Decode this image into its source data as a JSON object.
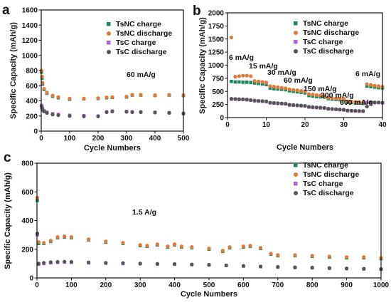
{
  "chart_data": [
    {
      "panel": "a",
      "type": "scatter",
      "xlabel": "Cycle Numbers",
      "ylabel": "Specific Capacity (mAh/g)",
      "xlim": [
        0,
        500
      ],
      "ylim": [
        0,
        1600
      ],
      "xticks": [
        0,
        100,
        200,
        300,
        400,
        500
      ],
      "yticks": [
        0,
        200,
        400,
        600,
        800,
        1000,
        1200,
        1400,
        1600
      ],
      "legend_position": "top-right",
      "annotations": [
        {
          "text": "60 mA/g"
        }
      ],
      "series": [
        {
          "name": "TsNC charge",
          "color": "#1a8a5a",
          "marker": "square",
          "x": [
            1,
            3,
            5,
            10,
            20,
            40,
            60,
            100,
            150,
            200,
            230,
            250,
            300,
            320,
            350,
            400,
            450,
            500
          ],
          "y": [
            780,
            700,
            620,
            550,
            500,
            460,
            440,
            420,
            425,
            430,
            440,
            445,
            450,
            475,
            475,
            470,
            475,
            470
          ]
        },
        {
          "name": "TsNC discharge",
          "color": "#e07a3c",
          "marker": "circle",
          "x": [
            1,
            3,
            5,
            10,
            20,
            40,
            60,
            100,
            150,
            200,
            230,
            250,
            300,
            320,
            350,
            400,
            450,
            500
          ],
          "y": [
            800,
            720,
            640,
            560,
            510,
            470,
            450,
            430,
            430,
            435,
            445,
            450,
            455,
            480,
            480,
            475,
            480,
            475
          ]
        },
        {
          "name": "TsC charge",
          "color": "#b060e0",
          "marker": "square",
          "x": [
            1,
            3,
            5,
            10,
            20,
            40,
            60,
            100,
            150,
            200,
            230,
            250,
            300,
            320,
            350,
            400,
            450,
            500
          ],
          "y": [
            340,
            310,
            290,
            270,
            250,
            230,
            220,
            210,
            205,
            200,
            255,
            265,
            260,
            255,
            255,
            250,
            245,
            235
          ]
        },
        {
          "name": "TsC discharge",
          "color": "#555555",
          "marker": "circle",
          "x": [
            1,
            3,
            5,
            10,
            20,
            40,
            60,
            100,
            150,
            200,
            230,
            250,
            300,
            320,
            350,
            400,
            450,
            500
          ],
          "y": [
            330,
            300,
            280,
            260,
            240,
            220,
            210,
            200,
            195,
            195,
            250,
            260,
            255,
            250,
            250,
            245,
            240,
            230
          ]
        }
      ]
    },
    {
      "panel": "b",
      "type": "scatter",
      "xlabel": "Cycle Numbers",
      "ylabel": "Specific Capacity (mAh/g)",
      "xlim": [
        0,
        40
      ],
      "ylim": [
        0,
        2000
      ],
      "xticks": [
        0,
        10,
        20,
        30,
        40
      ],
      "yticks": [
        0,
        250,
        500,
        750,
        1000,
        1250,
        1500,
        1750,
        2000
      ],
      "legend_position": "top-right",
      "annotations": [
        {
          "text": "6 mA/g"
        },
        {
          "text": "15 mA/g"
        },
        {
          "text": "30 mA/g"
        },
        {
          "text": "60 mA/g"
        },
        {
          "text": "150 mA/g"
        },
        {
          "text": "300 mA/g"
        },
        {
          "text": "600 mA/g"
        },
        {
          "text": "6 mA/g"
        }
      ],
      "series": [
        {
          "name": "TsNC charge",
          "color": "#1a8a5a",
          "marker": "square",
          "x": [
            1,
            2,
            3,
            4,
            5,
            6,
            7,
            8,
            9,
            10,
            11,
            12,
            13,
            14,
            15,
            16,
            17,
            18,
            19,
            20,
            21,
            22,
            23,
            24,
            25,
            26,
            27,
            28,
            29,
            30,
            31,
            32,
            33,
            34,
            35,
            36,
            37,
            38,
            39,
            40
          ],
          "y": [
            690,
            680,
            680,
            675,
            675,
            670,
            660,
            650,
            640,
            630,
            560,
            550,
            545,
            540,
            530,
            510,
            500,
            490,
            480,
            470,
            420,
            410,
            400,
            395,
            390,
            360,
            350,
            345,
            340,
            335,
            290,
            285,
            280,
            275,
            270,
            600,
            590,
            580,
            570,
            565
          ]
        },
        {
          "name": "TsNC discharge",
          "color": "#e07a3c",
          "marker": "circle",
          "x": [
            1,
            2,
            3,
            4,
            5,
            6,
            7,
            8,
            9,
            10,
            11,
            12,
            13,
            14,
            15,
            16,
            17,
            18,
            19,
            20,
            21,
            22,
            23,
            24,
            25,
            26,
            27,
            28,
            29,
            30,
            31,
            32,
            33,
            34,
            35,
            36,
            37,
            38,
            39,
            40
          ],
          "y": [
            1530,
            780,
            790,
            800,
            800,
            790,
            700,
            690,
            680,
            670,
            600,
            590,
            580,
            570,
            560,
            540,
            530,
            520,
            510,
            500,
            450,
            440,
            430,
            420,
            410,
            380,
            370,
            365,
            360,
            355,
            310,
            305,
            300,
            295,
            290,
            640,
            625,
            610,
            600,
            590
          ]
        },
        {
          "name": "TsC charge",
          "color": "#b060e0",
          "marker": "square",
          "x": [
            1,
            2,
            3,
            4,
            5,
            6,
            7,
            8,
            9,
            10,
            11,
            12,
            13,
            14,
            15,
            16,
            17,
            18,
            19,
            20,
            21,
            22,
            23,
            24,
            25,
            26,
            27,
            28,
            29,
            30,
            31,
            32,
            33,
            34,
            35,
            36,
            37,
            38,
            39,
            40
          ],
          "y": [
            350,
            350,
            345,
            345,
            340,
            330,
            320,
            315,
            310,
            305,
            280,
            275,
            270,
            265,
            260,
            240,
            235,
            230,
            225,
            220,
            200,
            195,
            190,
            185,
            180,
            165,
            160,
            155,
            150,
            145,
            130,
            128,
            125,
            122,
            120,
            290,
            290,
            285,
            285,
            280
          ]
        },
        {
          "name": "TsC discharge",
          "color": "#555555",
          "marker": "circle",
          "x": [
            1,
            2,
            3,
            4,
            5,
            6,
            7,
            8,
            9,
            10,
            11,
            12,
            13,
            14,
            15,
            16,
            17,
            18,
            19,
            20,
            21,
            22,
            23,
            24,
            25,
            26,
            27,
            28,
            29,
            30,
            31,
            32,
            33,
            34,
            35,
            36,
            37,
            38,
            39,
            40
          ],
          "y": [
            360,
            355,
            350,
            350,
            345,
            335,
            325,
            320,
            315,
            310,
            285,
            280,
            275,
            270,
            265,
            245,
            240,
            235,
            230,
            225,
            205,
            200,
            195,
            190,
            185,
            170,
            165,
            160,
            155,
            150,
            135,
            132,
            130,
            127,
            125,
            210,
            295,
            290,
            290,
            285
          ]
        }
      ]
    },
    {
      "panel": "c",
      "type": "scatter",
      "xlabel": "Cycle Numbers",
      "ylabel": "Specific Capacity (mAh/g)",
      "xlim": [
        0,
        1000
      ],
      "ylim": [
        0,
        800
      ],
      "xticks": [
        0,
        100,
        200,
        300,
        400,
        500,
        600,
        700,
        800,
        900,
        1000
      ],
      "yticks": [
        0,
        200,
        400,
        600,
        800
      ],
      "legend_position": "top-right",
      "annotations": [
        {
          "text": "1.5 A/g"
        }
      ],
      "series": [
        {
          "name": "TsNC charge",
          "color": "#1a8a5a",
          "marker": "square",
          "x": [
            1,
            5,
            20,
            40,
            60,
            80,
            100,
            150,
            200,
            250,
            300,
            320,
            350,
            380,
            400,
            420,
            450,
            500,
            540,
            560,
            600,
            620,
            650,
            680,
            700,
            750,
            800,
            850,
            900,
            950,
            1000
          ],
          "y": [
            540,
            240,
            240,
            255,
            280,
            285,
            280,
            265,
            250,
            240,
            225,
            220,
            230,
            215,
            230,
            215,
            210,
            200,
            185,
            210,
            215,
            220,
            205,
            165,
            155,
            155,
            150,
            145,
            140,
            140,
            135
          ]
        },
        {
          "name": "TsNC discharge",
          "color": "#e07a3c",
          "marker": "circle",
          "x": [
            1,
            5,
            20,
            40,
            60,
            80,
            100,
            150,
            200,
            250,
            300,
            320,
            350,
            380,
            400,
            420,
            450,
            500,
            540,
            560,
            600,
            620,
            650,
            680,
            700,
            750,
            800,
            850,
            900,
            950,
            1000
          ],
          "y": [
            560,
            250,
            245,
            260,
            285,
            290,
            285,
            270,
            255,
            245,
            230,
            225,
            235,
            220,
            235,
            220,
            215,
            205,
            190,
            215,
            220,
            225,
            210,
            170,
            160,
            160,
            155,
            150,
            145,
            145,
            140
          ]
        },
        {
          "name": "TsC charge",
          "color": "#b060e0",
          "marker": "square",
          "x": [
            1,
            5,
            20,
            40,
            60,
            80,
            100,
            150,
            200,
            250,
            300,
            350,
            400,
            450,
            500,
            550,
            600,
            650,
            700,
            750,
            800,
            850,
            900,
            950,
            1000
          ],
          "y": [
            300,
            95,
            100,
            105,
            108,
            110,
            108,
            105,
            102,
            100,
            98,
            96,
            95,
            92,
            90,
            86,
            82,
            78,
            75,
            72,
            70,
            67,
            64,
            62,
            60
          ]
        },
        {
          "name": "TsC discharge",
          "color": "#555555",
          "marker": "circle",
          "x": [
            1,
            5,
            20,
            40,
            60,
            80,
            100,
            150,
            200,
            250,
            300,
            350,
            400,
            450,
            500,
            550,
            600,
            650,
            700,
            750,
            800,
            850,
            900,
            950,
            1000
          ],
          "y": [
            310,
            100,
            105,
            110,
            112,
            113,
            112,
            108,
            105,
            103,
            100,
            98,
            97,
            94,
            92,
            88,
            84,
            80,
            77,
            74,
            72,
            69,
            66,
            64,
            62
          ]
        }
      ]
    }
  ]
}
